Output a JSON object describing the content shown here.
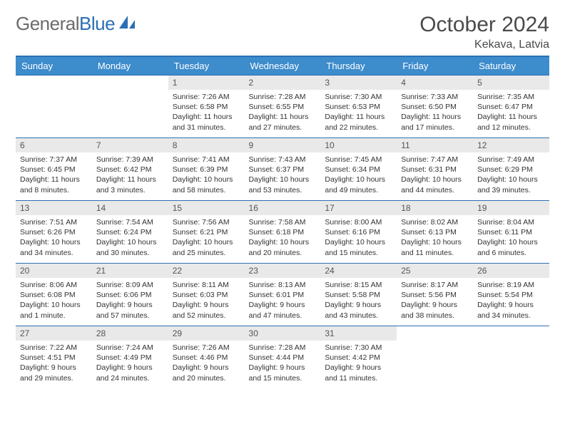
{
  "brand": {
    "part1": "General",
    "part2": "Blue"
  },
  "title": "October 2024",
  "location": "Kekava, Latvia",
  "colors": {
    "header_bg": "#3d8ccc",
    "rule": "#2b6fb5",
    "daynum_bg": "#e9e9e9",
    "text": "#333333",
    "logo_grey": "#6b6b6b",
    "logo_blue": "#2b6fb5"
  },
  "layout": {
    "columns": 7,
    "rows": 5,
    "first_weekday_index": 2
  },
  "weekdays": [
    "Sunday",
    "Monday",
    "Tuesday",
    "Wednesday",
    "Thursday",
    "Friday",
    "Saturday"
  ],
  "days": [
    {
      "n": 1,
      "sunrise": "7:26 AM",
      "sunset": "6:58 PM",
      "daylight": "11 hours and 31 minutes."
    },
    {
      "n": 2,
      "sunrise": "7:28 AM",
      "sunset": "6:55 PM",
      "daylight": "11 hours and 27 minutes."
    },
    {
      "n": 3,
      "sunrise": "7:30 AM",
      "sunset": "6:53 PM",
      "daylight": "11 hours and 22 minutes."
    },
    {
      "n": 4,
      "sunrise": "7:33 AM",
      "sunset": "6:50 PM",
      "daylight": "11 hours and 17 minutes."
    },
    {
      "n": 5,
      "sunrise": "7:35 AM",
      "sunset": "6:47 PM",
      "daylight": "11 hours and 12 minutes."
    },
    {
      "n": 6,
      "sunrise": "7:37 AM",
      "sunset": "6:45 PM",
      "daylight": "11 hours and 8 minutes."
    },
    {
      "n": 7,
      "sunrise": "7:39 AM",
      "sunset": "6:42 PM",
      "daylight": "11 hours and 3 minutes."
    },
    {
      "n": 8,
      "sunrise": "7:41 AM",
      "sunset": "6:39 PM",
      "daylight": "10 hours and 58 minutes."
    },
    {
      "n": 9,
      "sunrise": "7:43 AM",
      "sunset": "6:37 PM",
      "daylight": "10 hours and 53 minutes."
    },
    {
      "n": 10,
      "sunrise": "7:45 AM",
      "sunset": "6:34 PM",
      "daylight": "10 hours and 49 minutes."
    },
    {
      "n": 11,
      "sunrise": "7:47 AM",
      "sunset": "6:31 PM",
      "daylight": "10 hours and 44 minutes."
    },
    {
      "n": 12,
      "sunrise": "7:49 AM",
      "sunset": "6:29 PM",
      "daylight": "10 hours and 39 minutes."
    },
    {
      "n": 13,
      "sunrise": "7:51 AM",
      "sunset": "6:26 PM",
      "daylight": "10 hours and 34 minutes."
    },
    {
      "n": 14,
      "sunrise": "7:54 AM",
      "sunset": "6:24 PM",
      "daylight": "10 hours and 30 minutes."
    },
    {
      "n": 15,
      "sunrise": "7:56 AM",
      "sunset": "6:21 PM",
      "daylight": "10 hours and 25 minutes."
    },
    {
      "n": 16,
      "sunrise": "7:58 AM",
      "sunset": "6:18 PM",
      "daylight": "10 hours and 20 minutes."
    },
    {
      "n": 17,
      "sunrise": "8:00 AM",
      "sunset": "6:16 PM",
      "daylight": "10 hours and 15 minutes."
    },
    {
      "n": 18,
      "sunrise": "8:02 AM",
      "sunset": "6:13 PM",
      "daylight": "10 hours and 11 minutes."
    },
    {
      "n": 19,
      "sunrise": "8:04 AM",
      "sunset": "6:11 PM",
      "daylight": "10 hours and 6 minutes."
    },
    {
      "n": 20,
      "sunrise": "8:06 AM",
      "sunset": "6:08 PM",
      "daylight": "10 hours and 1 minute."
    },
    {
      "n": 21,
      "sunrise": "8:09 AM",
      "sunset": "6:06 PM",
      "daylight": "9 hours and 57 minutes."
    },
    {
      "n": 22,
      "sunrise": "8:11 AM",
      "sunset": "6:03 PM",
      "daylight": "9 hours and 52 minutes."
    },
    {
      "n": 23,
      "sunrise": "8:13 AM",
      "sunset": "6:01 PM",
      "daylight": "9 hours and 47 minutes."
    },
    {
      "n": 24,
      "sunrise": "8:15 AM",
      "sunset": "5:58 PM",
      "daylight": "9 hours and 43 minutes."
    },
    {
      "n": 25,
      "sunrise": "8:17 AM",
      "sunset": "5:56 PM",
      "daylight": "9 hours and 38 minutes."
    },
    {
      "n": 26,
      "sunrise": "8:19 AM",
      "sunset": "5:54 PM",
      "daylight": "9 hours and 34 minutes."
    },
    {
      "n": 27,
      "sunrise": "7:22 AM",
      "sunset": "4:51 PM",
      "daylight": "9 hours and 29 minutes."
    },
    {
      "n": 28,
      "sunrise": "7:24 AM",
      "sunset": "4:49 PM",
      "daylight": "9 hours and 24 minutes."
    },
    {
      "n": 29,
      "sunrise": "7:26 AM",
      "sunset": "4:46 PM",
      "daylight": "9 hours and 20 minutes."
    },
    {
      "n": 30,
      "sunrise": "7:28 AM",
      "sunset": "4:44 PM",
      "daylight": "9 hours and 15 minutes."
    },
    {
      "n": 31,
      "sunrise": "7:30 AM",
      "sunset": "4:42 PM",
      "daylight": "9 hours and 11 minutes."
    }
  ]
}
